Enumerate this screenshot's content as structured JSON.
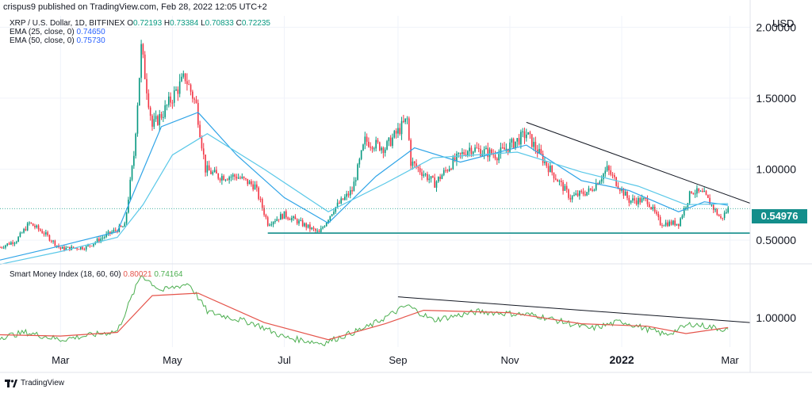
{
  "header": {
    "published": "crispus9 published on TradingView.com, Feb 28, 2022 12:05 UTC+2"
  },
  "legend": {
    "symbol": "XRP / U.S. Dollar, 1D, BITFINEX",
    "ohlc": {
      "o_label": "O",
      "o": "0.72193",
      "h_label": "H",
      "h": "0.73384",
      "l_label": "L",
      "l": "0.70833",
      "c_label": "C",
      "c": "0.72235"
    },
    "ema25": {
      "label": "EMA (25, close, 0)",
      "value": "0.74650"
    },
    "ema50": {
      "label": "EMA (50, close, 0)",
      "value": "0.75730"
    }
  },
  "smi_legend": {
    "label": "Smart Money Index (18, 60, 60)",
    "v1": "0.80021",
    "v2": "0.74164"
  },
  "currency": "USD",
  "price_badge": "0.54976",
  "footer": {
    "brand": "TradingView"
  },
  "colors": {
    "candle_up": "#089981",
    "candle_down": "#f23645",
    "ema25": "#2fa4e7",
    "ema50": "#5ac8e8",
    "support": "#138e8b",
    "smi_red": "#e5544b",
    "smi_green": "#4caf50",
    "trendline": "#131722"
  },
  "chart_data": [
    {
      "type": "candlestick",
      "title": "",
      "y_tick_labels": [
        "2.00000",
        "1.50000",
        "1.00000",
        "0.50000"
      ],
      "y_ticks": [
        2.0,
        1.5,
        1.0,
        0.5
      ],
      "ylim": [
        0.35,
        2.08
      ],
      "x_tick_labels": [
        "Mar",
        "May",
        "Jul",
        "Sep",
        "Nov",
        "2022",
        "Mar"
      ],
      "x_ticks": [
        "2021-03-01",
        "2021-05-01",
        "2021-07-01",
        "2021-09-01",
        "2021-11-01",
        "2022-01-01",
        "2022-03-01"
      ],
      "xlim": [
        "2021-01-27",
        "2022-03-12"
      ],
      "series_close": [
        {
          "date": "2021-01-27",
          "close": 0.45
        },
        {
          "date": "2021-02-05",
          "close": 0.5
        },
        {
          "date": "2021-02-12",
          "close": 0.62
        },
        {
          "date": "2021-02-20",
          "close": 0.55
        },
        {
          "date": "2021-03-01",
          "close": 0.44
        },
        {
          "date": "2021-03-15",
          "close": 0.45
        },
        {
          "date": "2021-03-28",
          "close": 0.55
        },
        {
          "date": "2021-04-05",
          "close": 0.6
        },
        {
          "date": "2021-04-10",
          "close": 1.1
        },
        {
          "date": "2021-04-14",
          "close": 1.85
        },
        {
          "date": "2021-04-20",
          "close": 1.3
        },
        {
          "date": "2021-04-26",
          "close": 1.4
        },
        {
          "date": "2021-05-03",
          "close": 1.55
        },
        {
          "date": "2021-05-08",
          "close": 1.65
        },
        {
          "date": "2021-05-14",
          "close": 1.45
        },
        {
          "date": "2021-05-19",
          "close": 1.0
        },
        {
          "date": "2021-05-26",
          "close": 0.95
        },
        {
          "date": "2021-06-05",
          "close": 0.95
        },
        {
          "date": "2021-06-15",
          "close": 0.88
        },
        {
          "date": "2021-06-22",
          "close": 0.62
        },
        {
          "date": "2021-07-01",
          "close": 0.68
        },
        {
          "date": "2021-07-10",
          "close": 0.62
        },
        {
          "date": "2021-07-20",
          "close": 0.55
        },
        {
          "date": "2021-07-28",
          "close": 0.72
        },
        {
          "date": "2021-08-07",
          "close": 0.85
        },
        {
          "date": "2021-08-14",
          "close": 1.2
        },
        {
          "date": "2021-08-25",
          "close": 1.15
        },
        {
          "date": "2021-09-06",
          "close": 1.35
        },
        {
          "date": "2021-09-08",
          "close": 1.05
        },
        {
          "date": "2021-09-21",
          "close": 0.9
        },
        {
          "date": "2021-10-01",
          "close": 1.05
        },
        {
          "date": "2021-10-10",
          "close": 1.15
        },
        {
          "date": "2021-10-25",
          "close": 1.1
        },
        {
          "date": "2021-11-10",
          "close": 1.25
        },
        {
          "date": "2021-11-20",
          "close": 1.05
        },
        {
          "date": "2021-12-04",
          "close": 0.8
        },
        {
          "date": "2021-12-15",
          "close": 0.85
        },
        {
          "date": "2021-12-24",
          "close": 1.0
        },
        {
          "date": "2022-01-05",
          "close": 0.78
        },
        {
          "date": "2022-01-15",
          "close": 0.78
        },
        {
          "date": "2022-01-22",
          "close": 0.62
        },
        {
          "date": "2022-02-01",
          "close": 0.62
        },
        {
          "date": "2022-02-08",
          "close": 0.85
        },
        {
          "date": "2022-02-15",
          "close": 0.82
        },
        {
          "date": "2022-02-24",
          "close": 0.65
        },
        {
          "date": "2022-02-28",
          "close": 0.72
        }
      ],
      "ema25_close": [
        {
          "date": "2021-01-27",
          "close": 0.36
        },
        {
          "date": "2021-03-01",
          "close": 0.46
        },
        {
          "date": "2021-04-01",
          "close": 0.56
        },
        {
          "date": "2021-04-12",
          "close": 0.9
        },
        {
          "date": "2021-04-25",
          "close": 1.3
        },
        {
          "date": "2021-05-15",
          "close": 1.4
        },
        {
          "date": "2021-06-05",
          "close": 1.1
        },
        {
          "date": "2021-07-01",
          "close": 0.8
        },
        {
          "date": "2021-07-25",
          "close": 0.62
        },
        {
          "date": "2021-08-20",
          "close": 0.95
        },
        {
          "date": "2021-09-10",
          "close": 1.15
        },
        {
          "date": "2021-10-05",
          "close": 1.05
        },
        {
          "date": "2021-11-10",
          "close": 1.17
        },
        {
          "date": "2021-12-10",
          "close": 0.92
        },
        {
          "date": "2022-01-05",
          "close": 0.85
        },
        {
          "date": "2022-02-01",
          "close": 0.7
        },
        {
          "date": "2022-02-15",
          "close": 0.77
        },
        {
          "date": "2022-02-28",
          "close": 0.7465
        }
      ],
      "ema50_close": [
        {
          "date": "2021-01-27",
          "close": 0.33
        },
        {
          "date": "2021-03-01",
          "close": 0.42
        },
        {
          "date": "2021-04-01",
          "close": 0.52
        },
        {
          "date": "2021-04-15",
          "close": 0.75
        },
        {
          "date": "2021-05-01",
          "close": 1.1
        },
        {
          "date": "2021-05-20",
          "close": 1.25
        },
        {
          "date": "2021-06-20",
          "close": 1.0
        },
        {
          "date": "2021-07-25",
          "close": 0.7
        },
        {
          "date": "2021-08-25",
          "close": 0.9
        },
        {
          "date": "2021-09-20",
          "close": 1.08
        },
        {
          "date": "2021-11-05",
          "close": 1.12
        },
        {
          "date": "2021-12-10",
          "close": 0.98
        },
        {
          "date": "2022-01-10",
          "close": 0.88
        },
        {
          "date": "2022-02-05",
          "close": 0.75
        },
        {
          "date": "2022-02-28",
          "close": 0.7573
        }
      ],
      "support_level": 0.54976,
      "trendline": [
        {
          "date": "2021-11-10",
          "price": 1.33
        },
        {
          "date": "2022-03-12",
          "price": 0.76
        }
      ],
      "last_price_line": 0.72235
    },
    {
      "type": "line",
      "title": "Smart Money Index (18, 60, 60)",
      "y_tick_labels": [
        "1.00000"
      ],
      "y_ticks": [
        1.0
      ],
      "ylim": [
        0.76,
        1.42
      ],
      "series": [
        {
          "name": "smi-green",
          "values": [
            {
              "date": "2021-01-27",
              "v": 0.84
            },
            {
              "date": "2021-02-10",
              "v": 0.88
            },
            {
              "date": "2021-03-01",
              "v": 0.82
            },
            {
              "date": "2021-04-01",
              "v": 0.89
            },
            {
              "date": "2021-04-14",
              "v": 1.35
            },
            {
              "date": "2021-04-25",
              "v": 1.22
            },
            {
              "date": "2021-05-10",
              "v": 1.28
            },
            {
              "date": "2021-05-20",
              "v": 1.05
            },
            {
              "date": "2021-06-15",
              "v": 0.95
            },
            {
              "date": "2021-07-01",
              "v": 0.84
            },
            {
              "date": "2021-07-22",
              "v": 0.79
            },
            {
              "date": "2021-08-15",
              "v": 0.92
            },
            {
              "date": "2021-09-06",
              "v": 1.1
            },
            {
              "date": "2021-09-20",
              "v": 0.98
            },
            {
              "date": "2021-10-15",
              "v": 1.05
            },
            {
              "date": "2021-11-15",
              "v": 1.02
            },
            {
              "date": "2021-12-15",
              "v": 0.91
            },
            {
              "date": "2022-01-01",
              "v": 0.97
            },
            {
              "date": "2022-01-25",
              "v": 0.86
            },
            {
              "date": "2022-02-08",
              "v": 0.95
            },
            {
              "date": "2022-02-28",
              "v": 0.9
            }
          ]
        },
        {
          "name": "smi-red",
          "values": [
            {
              "date": "2021-01-27",
              "v": 0.86
            },
            {
              "date": "2021-03-01",
              "v": 0.85
            },
            {
              "date": "2021-04-01",
              "v": 0.88
            },
            {
              "date": "2021-04-20",
              "v": 1.18
            },
            {
              "date": "2021-05-15",
              "v": 1.2
            },
            {
              "date": "2021-06-20",
              "v": 0.96
            },
            {
              "date": "2021-07-25",
              "v": 0.82
            },
            {
              "date": "2021-08-25",
              "v": 0.95
            },
            {
              "date": "2021-09-15",
              "v": 1.06
            },
            {
              "date": "2021-11-01",
              "v": 1.04
            },
            {
              "date": "2021-12-10",
              "v": 0.95
            },
            {
              "date": "2022-01-15",
              "v": 0.93
            },
            {
              "date": "2022-02-05",
              "v": 0.87
            },
            {
              "date": "2022-02-28",
              "v": 0.92
            }
          ]
        }
      ],
      "trendline": [
        {
          "date": "2021-09-01",
          "v": 1.17
        },
        {
          "date": "2022-03-12",
          "v": 0.96
        }
      ]
    }
  ]
}
